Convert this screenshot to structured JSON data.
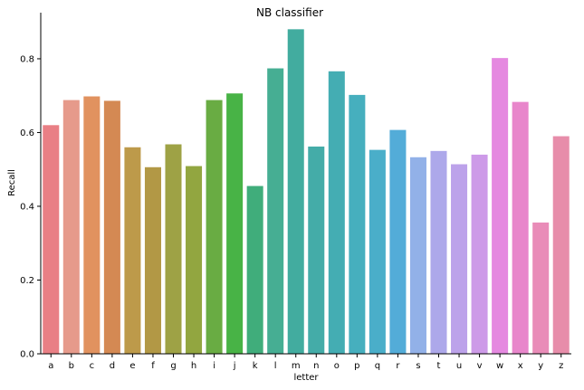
{
  "chart_data": {
    "type": "bar",
    "title": "NB classifier",
    "xlabel": "letter",
    "ylabel": "Recall",
    "ylim": [
      0,
      0.925
    ],
    "yticks": [
      0.0,
      0.2,
      0.4,
      0.6,
      0.8
    ],
    "ytick_labels": [
      "0.0",
      "0.2",
      "0.4",
      "0.6",
      "0.8"
    ],
    "grid": false,
    "categories": [
      "a",
      "b",
      "c",
      "d",
      "e",
      "f",
      "g",
      "h",
      "i",
      "j",
      "k",
      "l",
      "m",
      "n",
      "o",
      "p",
      "q",
      "r",
      "s",
      "t",
      "u",
      "v",
      "w",
      "x",
      "y",
      "z"
    ],
    "values": [
      0.62,
      0.688,
      0.698,
      0.686,
      0.56,
      0.506,
      0.568,
      0.509,
      0.688,
      0.706,
      0.455,
      0.774,
      0.88,
      0.562,
      0.766,
      0.702,
      0.553,
      0.607,
      0.533,
      0.55,
      0.514,
      0.54,
      0.802,
      0.683,
      0.356,
      0.59
    ],
    "colors": [
      "#e97f85",
      "#e69a8b",
      "#e1925f",
      "#d48953",
      "#bd9a4a",
      "#b29845",
      "#9ea245",
      "#92a640",
      "#69ac43",
      "#48b346",
      "#40ad7b",
      "#46ae93",
      "#42ac9f",
      "#44aca8",
      "#44adb3",
      "#46afbe",
      "#4aaec9",
      "#53acd8",
      "#92b1e8",
      "#ada8ea",
      "#bca2ea",
      "#cd9ae8",
      "#e589e0",
      "#e886cb",
      "#e98cb8",
      "#e78daa"
    ]
  }
}
